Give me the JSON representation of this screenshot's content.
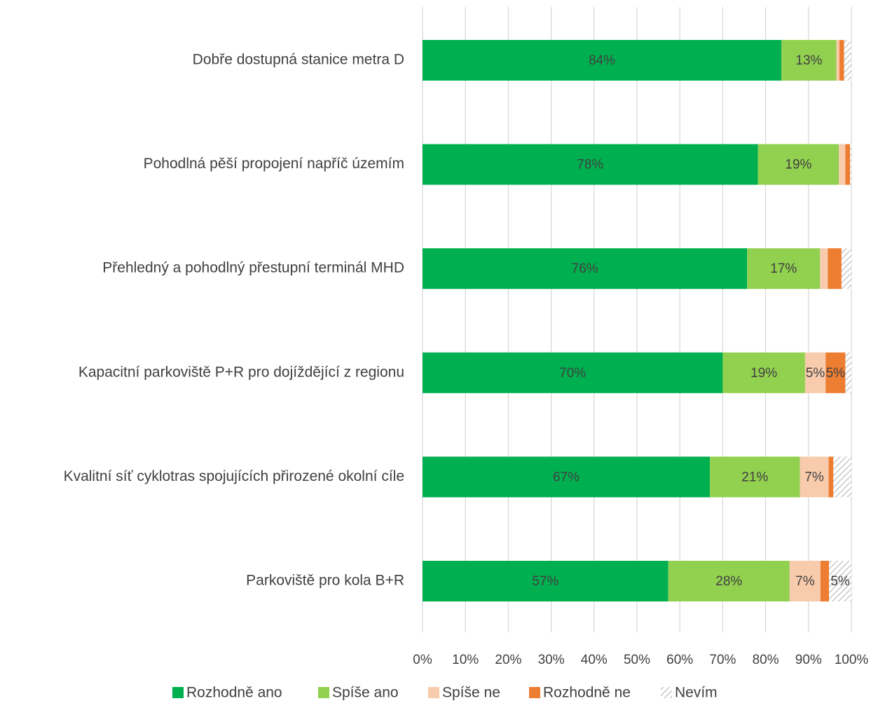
{
  "chart_data": {
    "type": "bar",
    "orientation": "horizontal",
    "stacked": true,
    "categories": [
      "Dobře dostupná stanice metra D",
      "Pohodlná pěší propojení napříč územím",
      "Přehledný a pohodlný přestupní terminál MHD",
      "Kapacitní parkoviště P+R pro dojíždějící z regionu",
      "Kvalitní síť cyklotras spojujících přirozené okolní cíle",
      "Parkoviště pro kola B+R"
    ],
    "series": [
      {
        "name": "Rozhodně ano",
        "color": "#00b050",
        "pattern": "solid",
        "values": [
          83.7,
          78.2,
          75.7,
          70.0,
          67.0,
          57.3
        ],
        "labels": [
          "84%",
          "78%",
          "76%",
          "70%",
          "67%",
          "57%"
        ]
      },
      {
        "name": "Spíše ano",
        "color": "#92d050",
        "pattern": "solid",
        "values": [
          12.8,
          18.9,
          17.0,
          19.2,
          21.0,
          28.3
        ],
        "labels": [
          "13%",
          "19%",
          "17%",
          "19%",
          "21%",
          "28%"
        ]
      },
      {
        "name": "Spíše ne",
        "color": "#f8cbad",
        "pattern": "solid",
        "values": [
          0.7,
          1.5,
          1.8,
          4.8,
          6.7,
          7.2
        ],
        "labels": [
          "",
          "",
          "",
          "5%",
          "7%",
          "7%"
        ]
      },
      {
        "name": "Rozhodně ne",
        "color": "#ed7d31",
        "pattern": "solid",
        "values": [
          1.1,
          1.1,
          3.2,
          4.6,
          1.1,
          2.0
        ],
        "labels": [
          "",
          "",
          "",
          "5%",
          "",
          ""
        ]
      },
      {
        "name": "Nevím",
        "color": "#bfbfbf",
        "pattern": "hatch",
        "values": [
          1.7,
          0.3,
          2.3,
          1.4,
          4.2,
          5.2
        ],
        "labels": [
          "",
          "",
          "",
          "",
          "",
          "5%"
        ]
      }
    ],
    "xlim": [
      0,
      100
    ],
    "xticks": [
      0,
      10,
      20,
      30,
      40,
      50,
      60,
      70,
      80,
      90,
      100
    ],
    "xtick_labels": [
      "0%",
      "10%",
      "20%",
      "30%",
      "40%",
      "50%",
      "60%",
      "70%",
      "80%",
      "90%",
      "100%"
    ],
    "grid": "vertical",
    "legend": "bottom",
    "title": "",
    "xlabel": "",
    "ylabel": ""
  }
}
